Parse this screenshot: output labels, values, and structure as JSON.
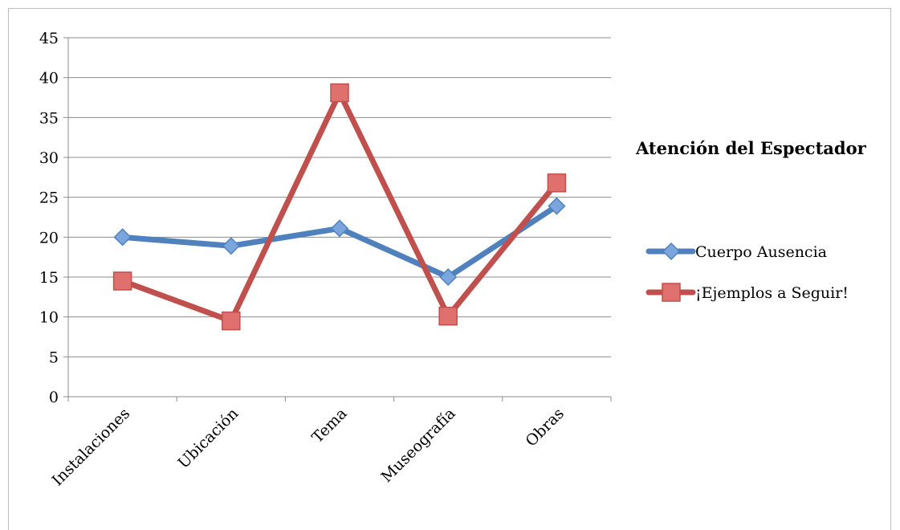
{
  "chart_data": {
    "type": "line",
    "title": "Atención del Espectador",
    "xlabel": "",
    "ylabel": "",
    "categories": [
      "Instalaciones",
      "Ubicación",
      "Tema",
      "Museografía",
      "Obras"
    ],
    "yticks": [
      "0",
      "5",
      "10",
      "15",
      "20",
      "25",
      "30",
      "35",
      "40",
      "45"
    ],
    "ylim": [
      0,
      45
    ],
    "grid": true,
    "legend_position": "right",
    "series": [
      {
        "name": "Cuerpo Ausencia",
        "values": [
          20,
          18.9,
          21.1,
          15,
          23.9
        ],
        "color": "#4f81bd",
        "marker_color": "#7aa6dd",
        "marker": "diamond"
      },
      {
        "name": "¡Ejemplos a Seguir!",
        "values": [
          14.5,
          9.5,
          38.1,
          10.1,
          26.8
        ],
        "color": "#c0504d",
        "marker_color": "#e0706d",
        "marker": "square"
      }
    ]
  }
}
